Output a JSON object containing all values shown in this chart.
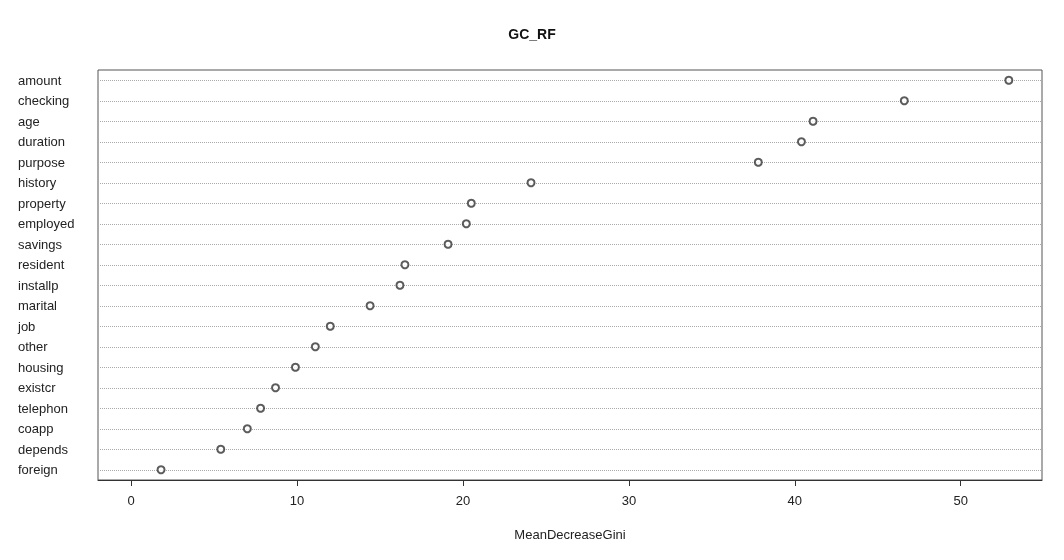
{
  "chart_data": {
    "type": "scatter",
    "title": "GC_RF",
    "xlabel": "MeanDecreaseGini",
    "categories": [
      "amount",
      "checking",
      "age",
      "duration",
      "purpose",
      "history",
      "property",
      "employed",
      "savings",
      "resident",
      "installp",
      "marital",
      "job",
      "other",
      "housing",
      "existcr",
      "telephon",
      "coapp",
      "depends",
      "foreign"
    ],
    "values": [
      52.9,
      46.6,
      41.1,
      40.4,
      37.8,
      24.1,
      20.5,
      20.2,
      19.1,
      16.5,
      16.2,
      14.4,
      12.0,
      11.1,
      9.9,
      8.7,
      7.8,
      7.0,
      5.4,
      1.8
    ],
    "orientation": "horizontal",
    "color": "#333333",
    "marker": "circle",
    "xlim": [
      -2,
      54.9
    ],
    "xticks": [
      0,
      10,
      20,
      30,
      40,
      50
    ],
    "grid": "y"
  }
}
